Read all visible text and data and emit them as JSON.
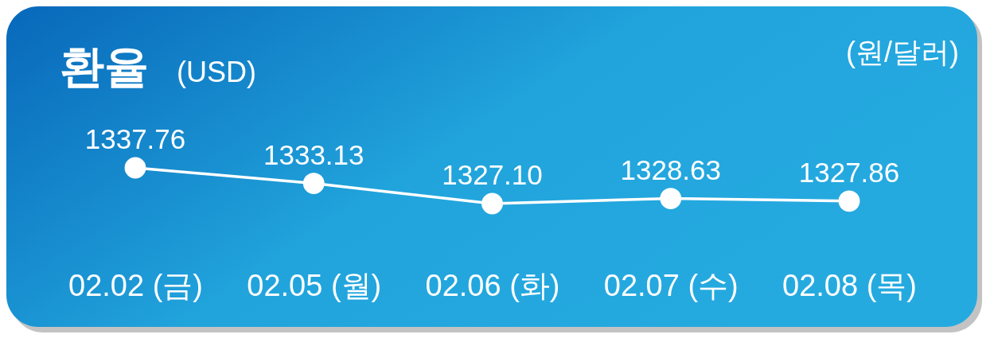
{
  "chart_data": {
    "type": "line",
    "title": "환율",
    "subtitle": "(USD)",
    "ylabel": "(원/달러)",
    "categories": [
      "02.02 (금)",
      "02.05 (월)",
      "02.06 (화)",
      "02.07 (수)",
      "02.08 (목)"
    ],
    "series": [
      {
        "color": "#ffffff",
        "values": [
          1337.76,
          1333.13,
          1327.1,
          1328.63,
          1327.86
        ],
        "value_labels": [
          "1337.76",
          "1333.13",
          "1327.10",
          "1328.63",
          "1327.86"
        ]
      }
    ],
    "marker": "circle",
    "line_style": "solid"
  }
}
